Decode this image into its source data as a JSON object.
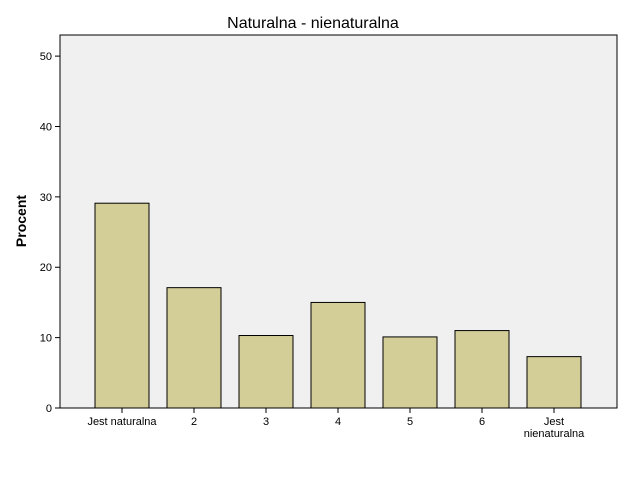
{
  "chart_data": {
    "type": "bar",
    "title": "Naturalna - nienaturalna",
    "xlabel": "",
    "ylabel": "Procent",
    "categories": [
      [
        "Jest naturalna"
      ],
      [
        "2"
      ],
      [
        "3"
      ],
      [
        "4"
      ],
      [
        "5"
      ],
      [
        "6"
      ],
      [
        "Jest",
        "nienaturalna"
      ]
    ],
    "values": [
      29.1,
      17.1,
      10.3,
      15.0,
      10.1,
      11.0,
      7.3
    ],
    "ylim": [
      0,
      53
    ],
    "yticks": [
      0,
      10,
      20,
      30,
      40,
      50
    ],
    "grid": false,
    "colors": {
      "plot_background": "#f0f0f0",
      "bar_fill": "#d3ce98",
      "bar_stroke": "#000000"
    }
  }
}
